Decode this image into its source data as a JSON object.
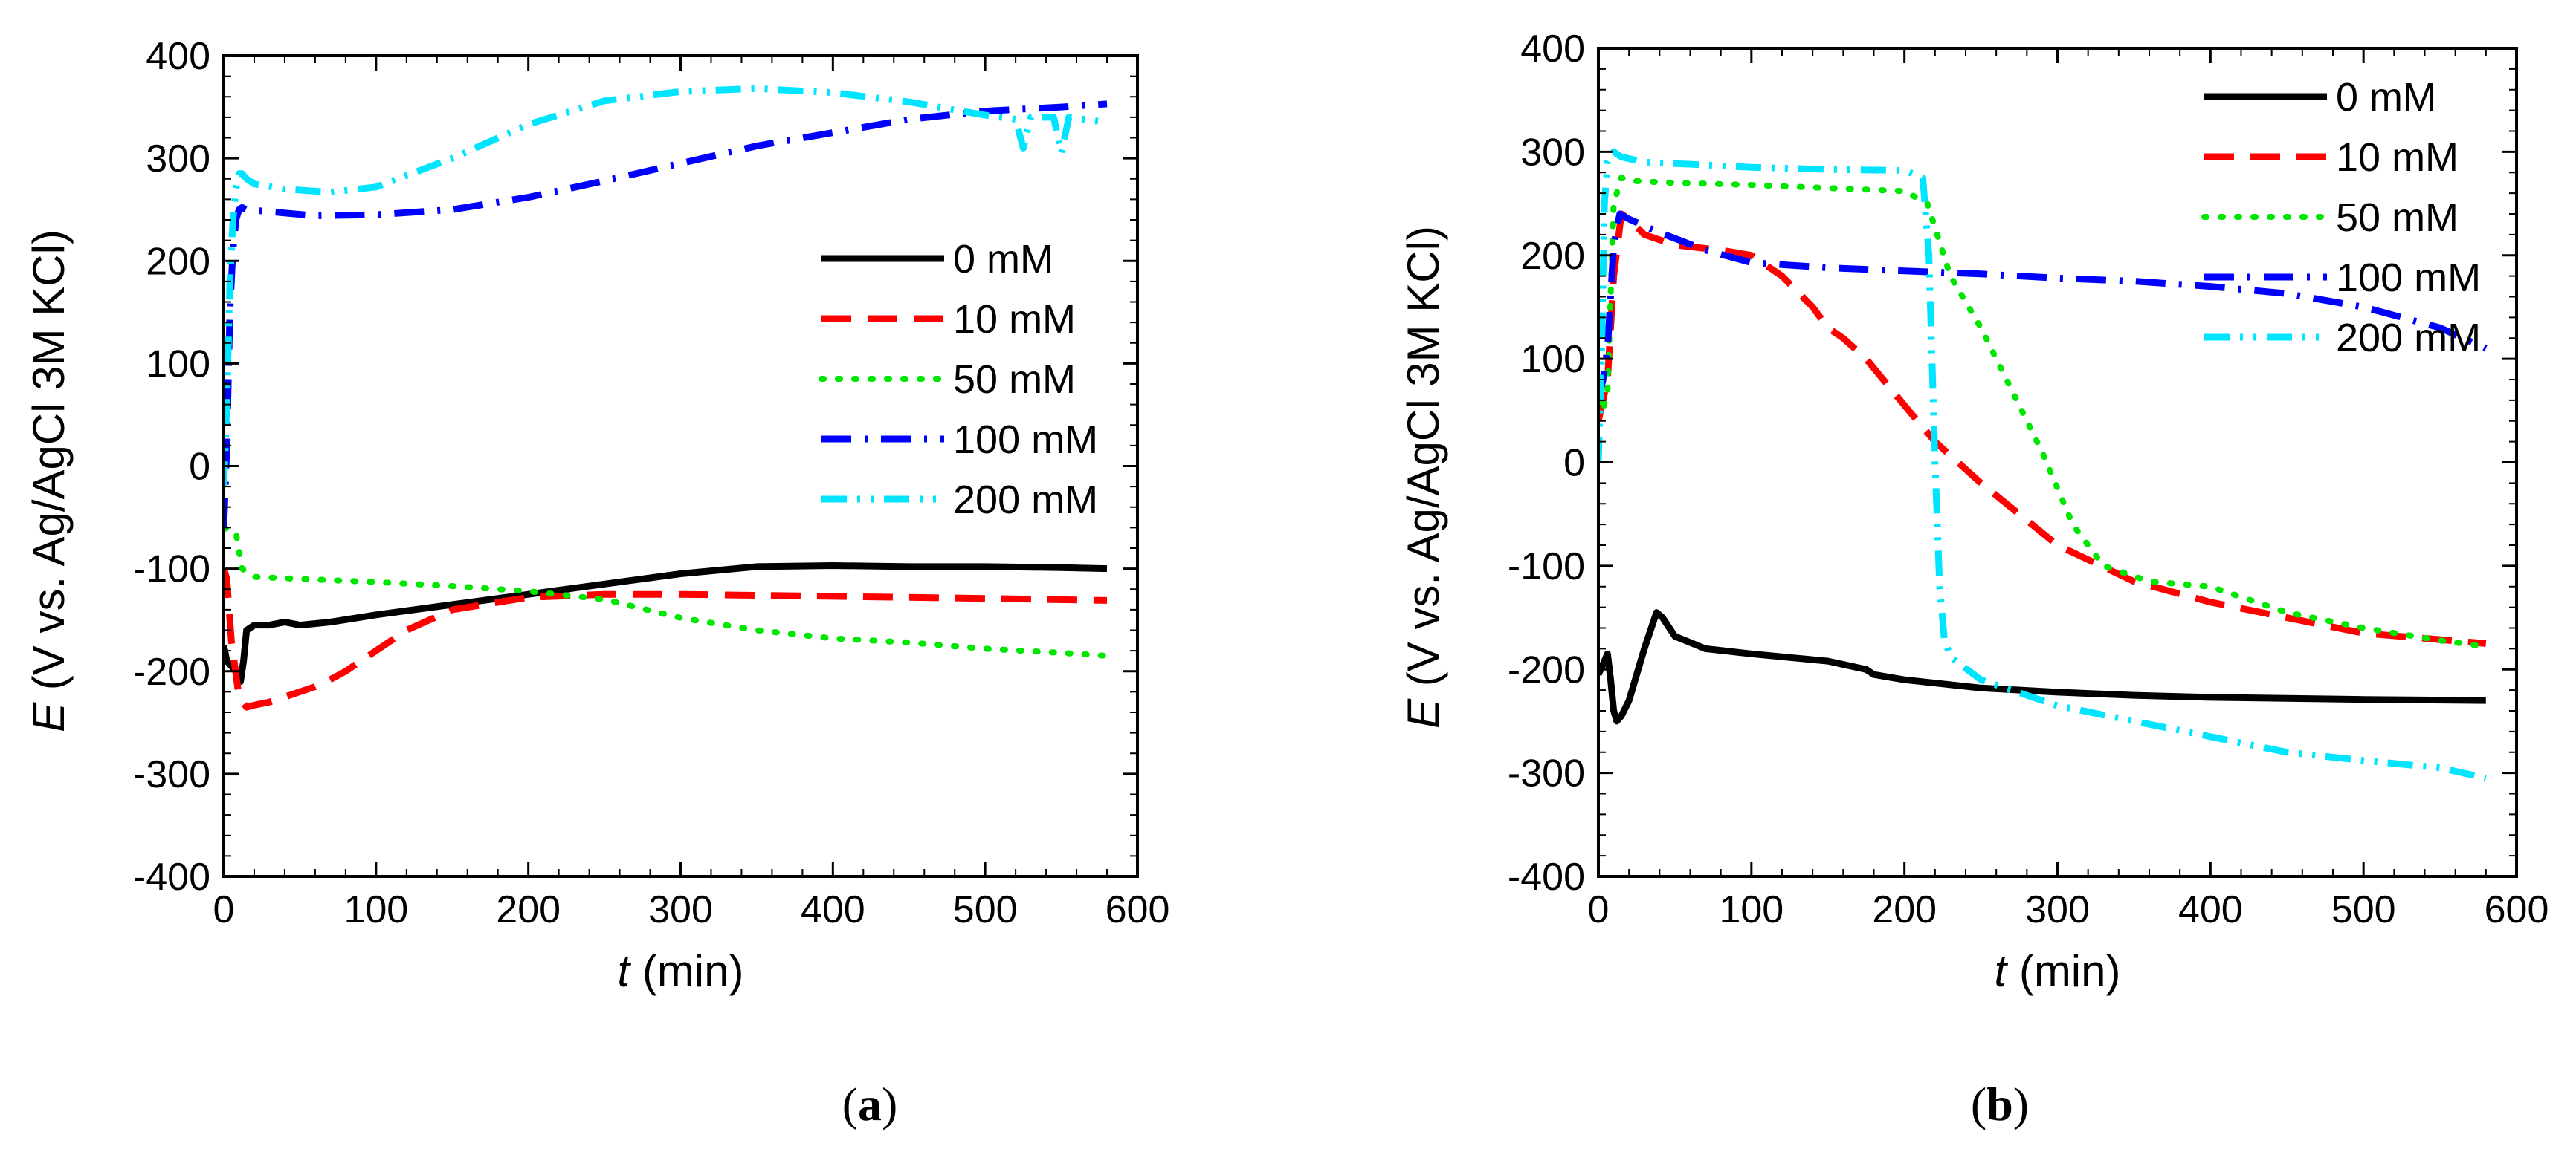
{
  "chart_data": [
    {
      "type": "line",
      "panel_label": "a",
      "xlabel_var": "t",
      "xlabel_unit": " (min)",
      "ylabel_var": "E",
      "ylabel_unit": " (V vs. Ag/AgCl 3M KCl)",
      "xlim": [
        0,
        600
      ],
      "ylim": [
        -400,
        400
      ],
      "xticks": [
        0,
        100,
        200,
        300,
        400,
        500,
        600
      ],
      "yticks": [
        -400,
        -300,
        -200,
        -100,
        0,
        100,
        200,
        300,
        400
      ],
      "legend_position": "center-right",
      "series": [
        {
          "name": "0 mM",
          "color": "#000000",
          "dash": "solid",
          "x": [
            0,
            2,
            5,
            8,
            11,
            13,
            15,
            20,
            30,
            40,
            50,
            70,
            100,
            150,
            200,
            250,
            300,
            350,
            400,
            450,
            500,
            550,
            580
          ],
          "y": [
            -175,
            -190,
            -195,
            -200,
            -210,
            -190,
            -160,
            -155,
            -155,
            -152,
            -155,
            -152,
            -145,
            -135,
            -125,
            -115,
            -105,
            -98,
            -97,
            -98,
            -98,
            -99,
            -100
          ]
        },
        {
          "name": "10 mM",
          "color": "#ff0000",
          "dash": "dash",
          "x": [
            0,
            2,
            5,
            10,
            15,
            20,
            30,
            40,
            50,
            60,
            70,
            80,
            100,
            120,
            150,
            200,
            250,
            300,
            350,
            400,
            450,
            500,
            580
          ],
          "y": [
            -100,
            -110,
            -170,
            -225,
            -235,
            -233,
            -230,
            -225,
            -220,
            -215,
            -208,
            -200,
            -180,
            -160,
            -140,
            -128,
            -125,
            -125,
            -126,
            -127,
            -128,
            -129,
            -131
          ]
        },
        {
          "name": "50 mM",
          "color": "#00e600",
          "dash": "dot",
          "x": [
            0,
            3,
            8,
            12,
            20,
            50,
            100,
            150,
            200,
            250,
            300,
            350,
            400,
            450,
            500,
            550,
            580
          ],
          "y": [
            -60,
            -62,
            -65,
            -100,
            -108,
            -110,
            -113,
            -117,
            -122,
            -130,
            -148,
            -160,
            -168,
            -172,
            -178,
            -182,
            -185
          ]
        },
        {
          "name": "100 mM",
          "color": "#0000ff",
          "dash": "dashdot",
          "x": [
            0,
            2,
            4,
            6,
            8,
            10,
            12,
            15,
            30,
            60,
            100,
            150,
            200,
            250,
            300,
            350,
            400,
            450,
            500,
            550,
            580
          ],
          "y": [
            -60,
            20,
            150,
            210,
            240,
            250,
            252,
            250,
            248,
            244,
            245,
            250,
            262,
            278,
            295,
            312,
            325,
            338,
            346,
            350,
            353
          ]
        },
        {
          "name": "200 mM",
          "color": "#00e5ff",
          "dash": "dashdotdot",
          "x": [
            0,
            2,
            4,
            6,
            8,
            10,
            12,
            15,
            20,
            40,
            70,
            100,
            150,
            200,
            250,
            300,
            350,
            400,
            450,
            500,
            520,
            525,
            530,
            545,
            550,
            555,
            580
          ],
          "y": [
            -20,
            60,
            180,
            240,
            270,
            285,
            285,
            280,
            275,
            270,
            267,
            272,
            300,
            333,
            356,
            365,
            368,
            364,
            355,
            342,
            338,
            310,
            340,
            340,
            305,
            340,
            335
          ]
        }
      ]
    },
    {
      "type": "line",
      "panel_label": "b",
      "xlabel_var": "t",
      "xlabel_unit": " (min)",
      "ylabel_var": "E",
      "ylabel_unit": " (V vs. Ag/AgCl 3M KCl)",
      "xlim": [
        0,
        600
      ],
      "ylim": [
        -400,
        400
      ],
      "xticks": [
        0,
        100,
        200,
        300,
        400,
        500,
        600
      ],
      "yticks": [
        -400,
        -300,
        -200,
        -100,
        0,
        100,
        200,
        300,
        400
      ],
      "legend_position": "top-right",
      "series": [
        {
          "name": "0 mM",
          "color": "#000000",
          "dash": "solid",
          "x": [
            0,
            3,
            6,
            8,
            10,
            12,
            15,
            20,
            30,
            38,
            42,
            50,
            70,
            100,
            150,
            175,
            180,
            200,
            250,
            300,
            350,
            400,
            450,
            500,
            580
          ],
          "y": [
            -205,
            -195,
            -185,
            -210,
            -240,
            -250,
            -245,
            -230,
            -180,
            -145,
            -150,
            -168,
            -180,
            -185,
            -192,
            -200,
            -205,
            -210,
            -218,
            -222,
            -225,
            -227,
            -228,
            -229,
            -230
          ]
        },
        {
          "name": "10 mM",
          "color": "#ff0000",
          "dash": "dash",
          "x": [
            0,
            3,
            6,
            10,
            15,
            20,
            30,
            50,
            80,
            100,
            120,
            140,
            150,
            160,
            175,
            200,
            220,
            250,
            300,
            350,
            400,
            450,
            500,
            580
          ],
          "y": [
            40,
            60,
            80,
            180,
            240,
            235,
            220,
            210,
            205,
            200,
            180,
            150,
            130,
            120,
            100,
            55,
            20,
            -20,
            -80,
            -115,
            -135,
            -150,
            -165,
            -175
          ]
        },
        {
          "name": "50 mM",
          "color": "#00e600",
          "dash": "dot",
          "x": [
            0,
            3,
            6,
            10,
            15,
            20,
            50,
            100,
            150,
            200,
            215,
            230,
            250,
            270,
            290,
            310,
            330,
            360,
            400,
            450,
            500,
            550,
            580
          ],
          "y": [
            60,
            50,
            70,
            250,
            275,
            272,
            270,
            268,
            265,
            262,
            250,
            180,
            130,
            70,
            10,
            -60,
            -100,
            -115,
            -120,
            -145,
            -160,
            -172,
            -178
          ]
        },
        {
          "name": "100 mM",
          "color": "#0000ff",
          "dash": "dashdot",
          "x": [
            0,
            3,
            6,
            10,
            14,
            20,
            40,
            70,
            100,
            150,
            200,
            250,
            300,
            350,
            400,
            450,
            500,
            550,
            580
          ],
          "y": [
            60,
            80,
            110,
            210,
            240,
            235,
            222,
            205,
            193,
            188,
            185,
            182,
            178,
            175,
            170,
            163,
            150,
            130,
            110
          ]
        },
        {
          "name": "200 mM",
          "color": "#00e5ff",
          "dash": "dashdotdot",
          "x": [
            0,
            2,
            4,
            6,
            10,
            15,
            30,
            60,
            100,
            150,
            200,
            212,
            216,
            220,
            223,
            226,
            230,
            250,
            300,
            350,
            400,
            450,
            500,
            550,
            580
          ],
          "y": [
            0,
            100,
            250,
            290,
            300,
            295,
            290,
            288,
            285,
            283,
            282,
            275,
            200,
            0,
            -120,
            -170,
            -188,
            -210,
            -235,
            -250,
            -265,
            -280,
            -288,
            -295,
            -305
          ]
        }
      ]
    }
  ]
}
